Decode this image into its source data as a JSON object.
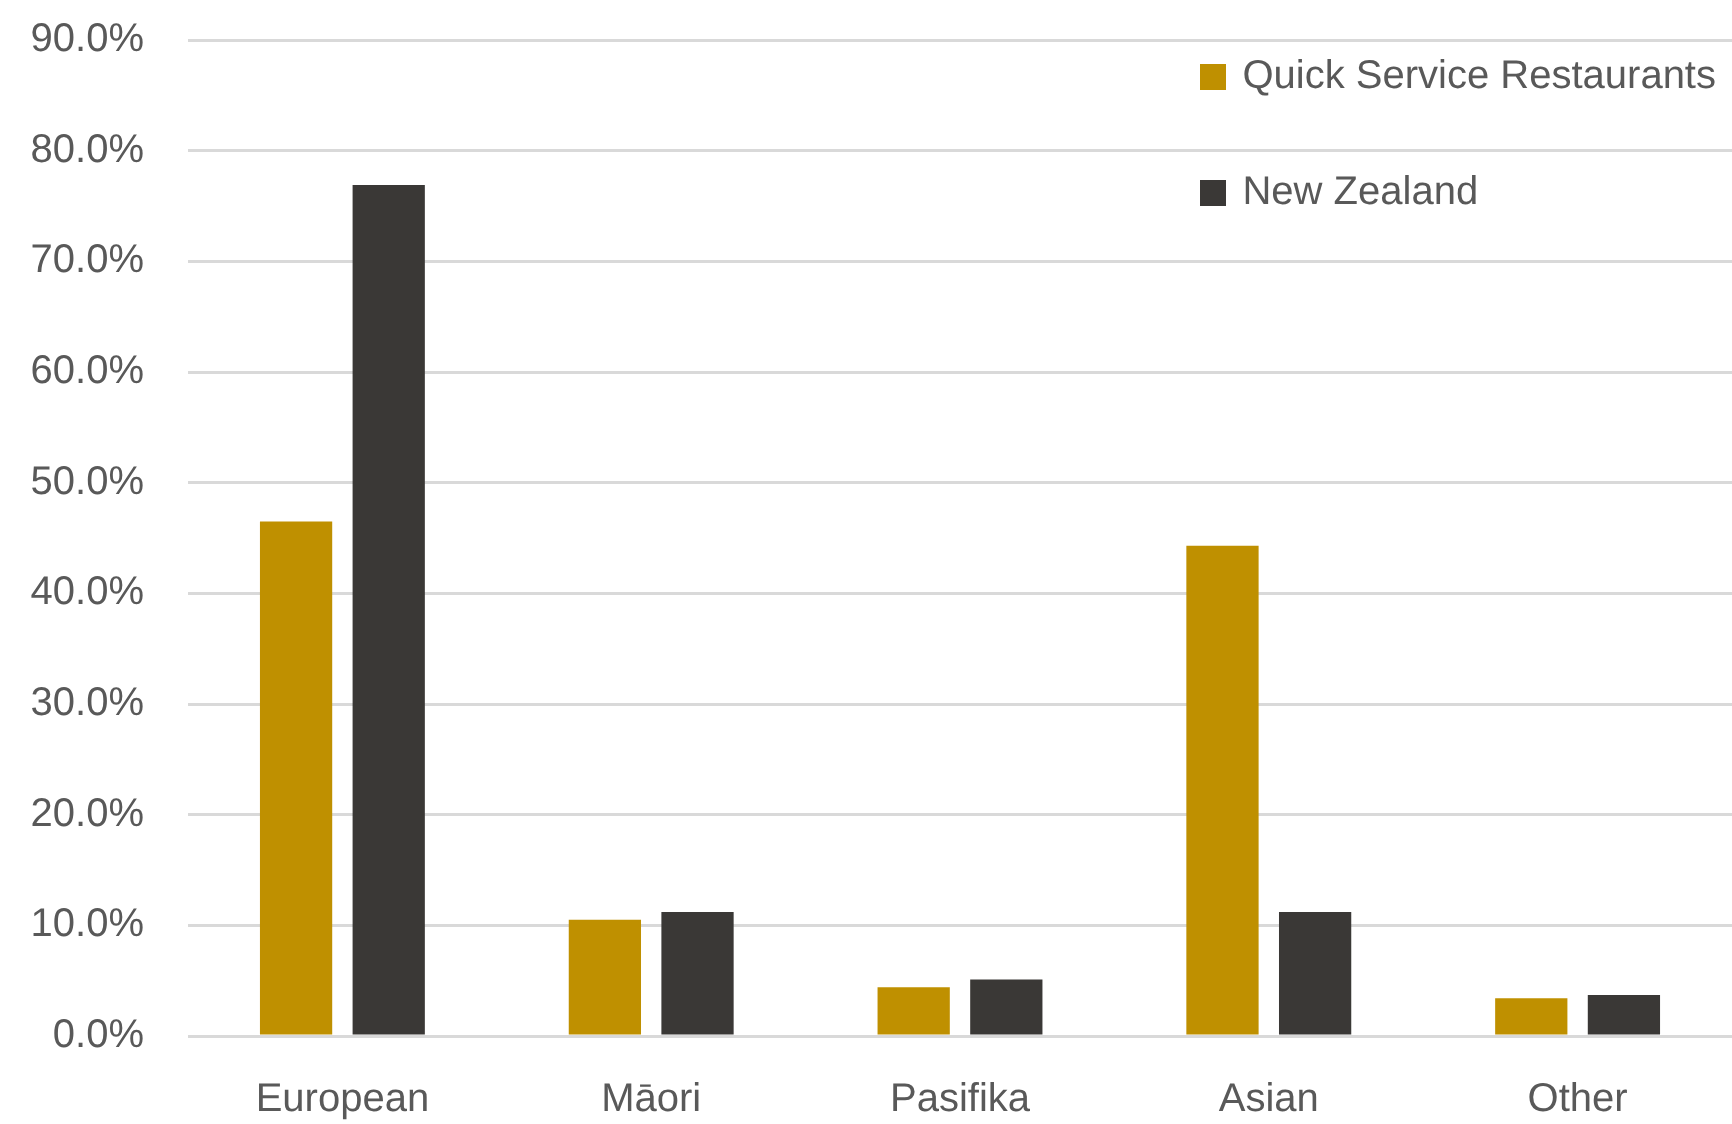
{
  "chart_data": {
    "type": "bar",
    "categories": [
      "European",
      "Māori",
      "Pasifika",
      "Asian",
      "Other"
    ],
    "series": [
      {
        "name": "Quick Service Restaurants",
        "color": "#bf9000",
        "values": [
          46.5,
          10.5,
          4.4,
          44.3,
          3.4
        ]
      },
      {
        "name": "New Zealand",
        "color": "#3a3836",
        "values": [
          76.9,
          11.2,
          5.1,
          11.2,
          3.7
        ]
      }
    ],
    "ylim": [
      0,
      90
    ],
    "yticks": [
      {
        "value": 0,
        "label": "0.0%"
      },
      {
        "value": 10,
        "label": "10.0%"
      },
      {
        "value": 20,
        "label": "20.0%"
      },
      {
        "value": 30,
        "label": "30.0%"
      },
      {
        "value": 40,
        "label": "40.0%"
      },
      {
        "value": 50,
        "label": "50.0%"
      },
      {
        "value": 60,
        "label": "60.0%"
      },
      {
        "value": 70,
        "label": "70.0%"
      },
      {
        "value": 80,
        "label": "80.0%"
      },
      {
        "value": 90,
        "label": "90.0%"
      }
    ],
    "grid": "y",
    "legend": "top right"
  }
}
